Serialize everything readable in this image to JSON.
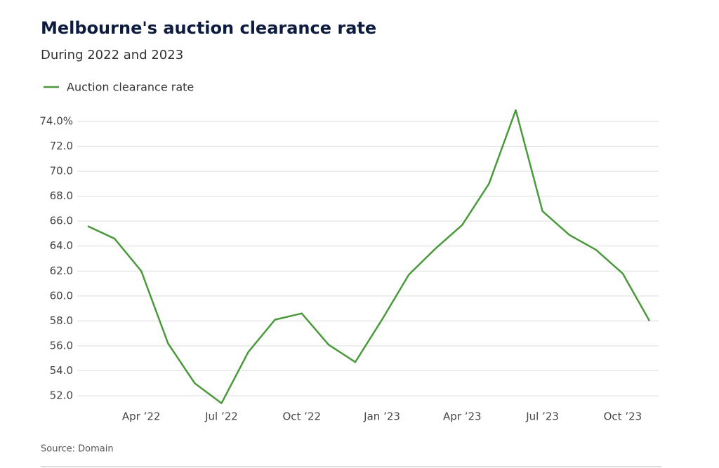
{
  "chart_data": {
    "type": "line",
    "title": "Melbourne's auction clearance rate",
    "subtitle": "During 2022 and 2023",
    "source": "Source: Domain",
    "x": [
      "2022-02",
      "2022-03",
      "2022-04",
      "2022-05",
      "2022-06",
      "2022-07",
      "2022-08",
      "2022-09",
      "2022-10",
      "2022-11",
      "2022-12",
      "2023-01",
      "2023-02",
      "2023-03",
      "2023-04",
      "2023-05",
      "2023-06",
      "2023-07",
      "2023-08",
      "2023-09",
      "2023-10",
      "2023-11"
    ],
    "series": [
      {
        "name": "Auction clearance rate",
        "color": "#4a9a3c",
        "values": [
          65.6,
          64.6,
          62.0,
          56.2,
          53.0,
          51.4,
          55.5,
          58.1,
          58.6,
          56.1,
          54.7,
          58.1,
          61.7,
          63.8,
          65.7,
          69.0,
          74.9,
          66.8,
          64.9,
          63.7,
          61.8,
          58.0
        ]
      }
    ],
    "xticks": [
      {
        "value": "2022-04",
        "label": "Apr ’22"
      },
      {
        "value": "2022-07",
        "label": "Jul ’22"
      },
      {
        "value": "2022-10",
        "label": "Oct ’22"
      },
      {
        "value": "2023-01",
        "label": "Jan ’23"
      },
      {
        "value": "2023-04",
        "label": "Apr ’23"
      },
      {
        "value": "2023-07",
        "label": "Jul ’23"
      },
      {
        "value": "2023-10",
        "label": "Oct ’23"
      }
    ],
    "ylim": [
      51,
      75
    ],
    "yticks": [
      {
        "value": 52,
        "label": "52.0"
      },
      {
        "value": 54,
        "label": "54.0"
      },
      {
        "value": 56,
        "label": "56.0"
      },
      {
        "value": 58,
        "label": "58.0"
      },
      {
        "value": 60,
        "label": "60.0"
      },
      {
        "value": 62,
        "label": "62.0"
      },
      {
        "value": 64,
        "label": "64.0"
      },
      {
        "value": 66,
        "label": "66.0"
      },
      {
        "value": 68,
        "label": "68.0"
      },
      {
        "value": 70,
        "label": "70.0"
      },
      {
        "value": 72,
        "label": "72.0"
      },
      {
        "value": 74,
        "label": "74.0%"
      }
    ],
    "grid": true
  }
}
